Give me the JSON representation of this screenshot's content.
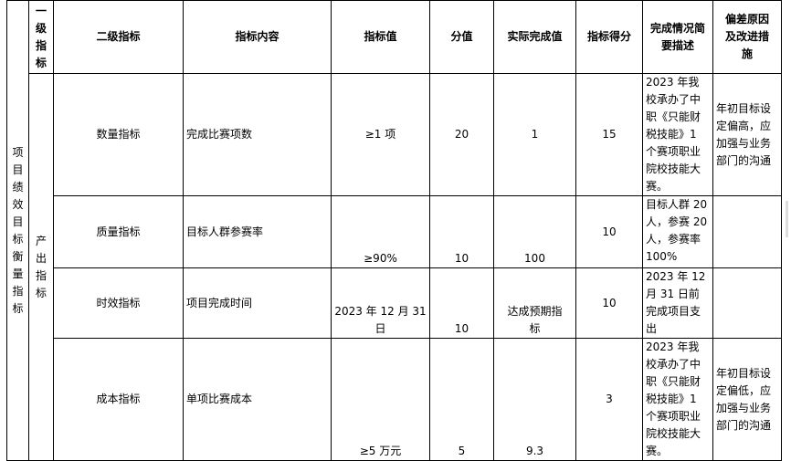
{
  "header": {
    "col_project": "",
    "level1": "一级指标",
    "level2": "二级指标",
    "content": "指标内容",
    "target": "指标值",
    "score": "分值",
    "actual": "实际完成值",
    "points": "指标得分",
    "summary": "完成情况简要描述",
    "deviation": "偏差原因及改进措施"
  },
  "project_label": "项目绩效目标衡量指标",
  "level1_label": "产出指标",
  "rows": [
    {
      "level2": "数量指标",
      "content": "完成比赛项数",
      "target": "≥1 项",
      "score": "20",
      "actual": "1",
      "points": "15",
      "summary": "2023 年我校承办了中职《只能财税技能》1 个赛项职业院校技能大赛。",
      "deviation": "年初目标设定偏高，应加强与业务部门的沟通"
    },
    {
      "level2": "质量指标",
      "content": "目标人群参赛率",
      "target": "≥90%",
      "score": "10",
      "actual": "100",
      "points": "10",
      "summary": "目标人群 20 人，参赛 20 人，参赛率 100%",
      "deviation": ""
    },
    {
      "level2": "时效指标",
      "content": "项目完成时间",
      "target": "2023 年 12 月 31 日",
      "score": "10",
      "actual": "达成预期指标",
      "points": "10",
      "summary": "2023 年 12 月 31 日前完成项目支出",
      "deviation": ""
    },
    {
      "level2": "成本指标",
      "content": "单项比赛成本",
      "target": "≥5 万元",
      "score": "5",
      "actual": "9.3",
      "points": "3",
      "summary": "2023 年我校承办了中职《只能财税技能》1 个赛项职业院校技能大赛。",
      "deviation": "年初目标设定偏低，应加强与业务部门的沟通"
    }
  ]
}
